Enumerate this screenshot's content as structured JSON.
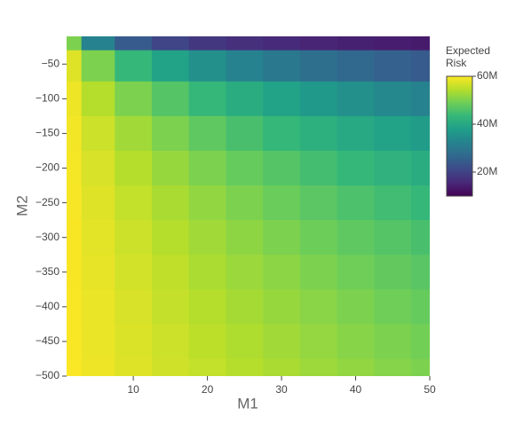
{
  "chart_data": {
    "type": "contour",
    "colorscale": "Viridis",
    "x_label": "M1",
    "y_label": "M2",
    "colorbar_title": "Expected Risk",
    "x": [
      1,
      5,
      10,
      15,
      20,
      25,
      30,
      35,
      40,
      45,
      50
    ],
    "y": [
      -10,
      -50,
      -100,
      -150,
      -200,
      -250,
      -300,
      -350,
      -400,
      -450,
      -500
    ],
    "z": [
      [
        50000000,
        32200000,
        24300000,
        20500000,
        18300000,
        16900000,
        15900000,
        15100000,
        14500000,
        14100000,
        13700000
      ],
      [
        57600000,
        50000000,
        43300000,
        38600000,
        35000000,
        32200000,
        30000000,
        28200000,
        26700000,
        25400000,
        24300000
      ],
      [
        58800000,
        54400000,
        50000000,
        46400000,
        43300000,
        40800000,
        38600000,
        36700000,
        35000000,
        33500000,
        32200000
      ],
      [
        59200000,
        56200000,
        52900000,
        50000000,
        47500000,
        45300000,
        43300000,
        41600000,
        40000000,
        38600000,
        37300000
      ],
      [
        59400000,
        57100000,
        54400000,
        52100000,
        50000000,
        48100000,
        46400000,
        44800000,
        43300000,
        42000000,
        40800000
      ],
      [
        59500000,
        57600000,
        55500000,
        53500000,
        51700000,
        50000000,
        48500000,
        47000000,
        45700000,
        44500000,
        43300000
      ],
      [
        59600000,
        58000000,
        56200000,
        54400000,
        52900000,
        51400000,
        50000000,
        48700000,
        47500000,
        46400000,
        45300000
      ],
      [
        59600000,
        58300000,
        56700000,
        55200000,
        53700000,
        52400000,
        51200000,
        50000000,
        48900000,
        47800000,
        46800000
      ],
      [
        59700000,
        58500000,
        57100000,
        55700000,
        54400000,
        53200000,
        52100000,
        51000000,
        50000000,
        49000000,
        48100000
      ],
      [
        59700000,
        58600000,
        57400000,
        56200000,
        55000000,
        53900000,
        52900000,
        51900000,
        50900000,
        50000000,
        49100000
      ],
      [
        59800000,
        58800000,
        57600000,
        56500000,
        55500000,
        54400000,
        53500000,
        52600000,
        51700000,
        50800000,
        50000000
      ]
    ],
    "xlim": [
      1,
      50
    ],
    "ylim": [
      -500,
      -10
    ],
    "zlim": [
      10000000,
      60000000
    ],
    "xticks": [
      10,
      20,
      30,
      40,
      50
    ],
    "yticks": [
      {
        "value": -50,
        "label": "−50"
      },
      {
        "value": -100,
        "label": "−100"
      },
      {
        "value": -150,
        "label": "−150"
      },
      {
        "value": -200,
        "label": "−200"
      },
      {
        "value": -250,
        "label": "−250"
      },
      {
        "value": -300,
        "label": "−300"
      },
      {
        "value": -350,
        "label": "−350"
      },
      {
        "value": -400,
        "label": "−400"
      },
      {
        "value": -450,
        "label": "−450"
      },
      {
        "value": -500,
        "label": "−500"
      }
    ],
    "zticks": [
      {
        "value": 20000000,
        "label": "20M"
      },
      {
        "value": 40000000,
        "label": "40M"
      },
      {
        "value": 60000000,
        "label": "60M"
      }
    ]
  }
}
